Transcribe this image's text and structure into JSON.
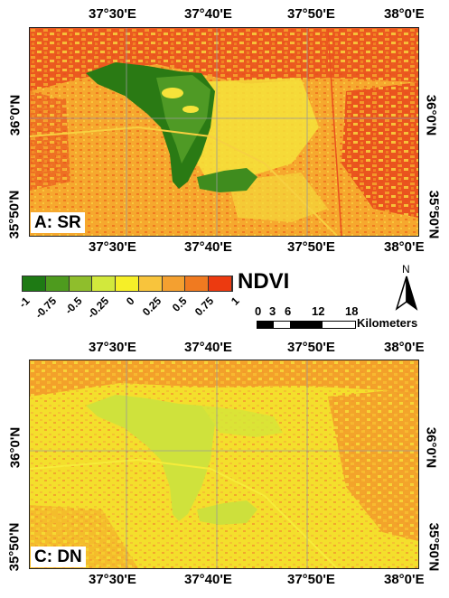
{
  "map_a": {
    "panel_label": "A: SR",
    "top_lon_labels": [
      "37°30'E",
      "37°40'E",
      "37°50'E",
      "38°0'E"
    ],
    "bottom_lon_labels": [
      "37°30'E",
      "37°40'E",
      "37°50'E",
      "38°0'E"
    ],
    "left_lat_labels": [
      "36°0'N",
      "35°50'N"
    ],
    "right_lat_labels": [
      "36°0'N",
      "35°50'N"
    ]
  },
  "map_c": {
    "panel_label": "C: DN",
    "top_lon_labels": [
      "37°30'E",
      "37°40'E",
      "37°50'E",
      "38°0'E"
    ],
    "bottom_lon_labels": [
      "37°30'E",
      "37°40'E",
      "37°50'E",
      "38°0'E"
    ],
    "left_lat_labels": [
      "36°0'N",
      "35°50'N"
    ],
    "right_lat_labels": [
      "36°0'N",
      "35°50'N"
    ]
  },
  "legend": {
    "title": "NDVI",
    "ticks": [
      "-1",
      "-0.75",
      "-0.5",
      "-0.25",
      "0",
      "0.25",
      "0.5",
      "0.75",
      "1"
    ],
    "colors": [
      "#1e7a14",
      "#4e9b1e",
      "#8fbe2c",
      "#d2e83c",
      "#f6ef28",
      "#f8c43c",
      "#f4a030",
      "#f07a20",
      "#ec3a10"
    ]
  },
  "north_arrow": {
    "label": "N"
  },
  "scale_bar": {
    "ticks": [
      "0",
      "3",
      "6",
      "12",
      "18"
    ],
    "unit": "Kilometers"
  },
  "colors": {
    "red": "#e8421a",
    "orange": "#f39a2a",
    "amber": "#f7b52f",
    "yellow": "#f6e92c",
    "light_yellow": "#f2ef3a",
    "pale_green": "#cfe23c",
    "dark_green": "#2a7a14",
    "mid_green": "#4f9a25",
    "grid": "#9a9a9a"
  }
}
